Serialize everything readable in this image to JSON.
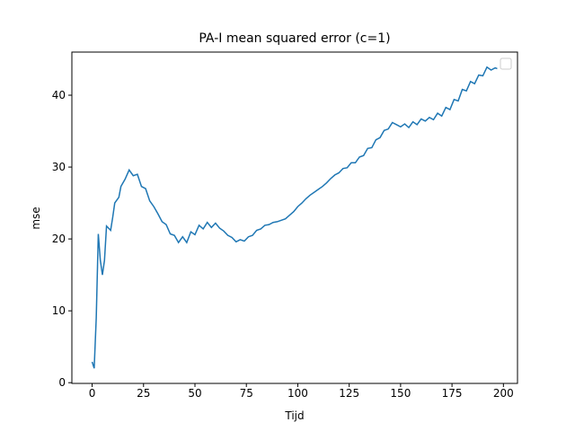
{
  "chart_data": {
    "type": "line",
    "title": "PA-I mean squared error (c=1)",
    "x_label": "Tijd",
    "y_label": "mse",
    "x": [
      0,
      1,
      2,
      3,
      4,
      5,
      6,
      7,
      8,
      9,
      10,
      11,
      13,
      14,
      16,
      18,
      20,
      22,
      24,
      26,
      28,
      30,
      32,
      34,
      36,
      38,
      40,
      42,
      44,
      46,
      48,
      50,
      52,
      54,
      56,
      58,
      60,
      62,
      64,
      66,
      68,
      70,
      72,
      74,
      76,
      78,
      80,
      82,
      84,
      86,
      88,
      90,
      92,
      94,
      96,
      98,
      100,
      102,
      104,
      106,
      108,
      110,
      112,
      114,
      116,
      118,
      120,
      122,
      124,
      126,
      128,
      130,
      132,
      134,
      136,
      138,
      140,
      142,
      144,
      146,
      148,
      150,
      152,
      154,
      156,
      158,
      160,
      162,
      164,
      166,
      168,
      170,
      172,
      174,
      176,
      178,
      180,
      182,
      184,
      186,
      188,
      190,
      192,
      194,
      196,
      197
    ],
    "series": [
      {
        "color": "#1f77b4",
        "values": [
          2.9,
          2.0,
          9,
          20.7,
          17,
          15,
          17,
          21.8,
          21.5,
          21.2,
          23,
          25,
          25.8,
          27.3,
          28.3,
          29.6,
          28.8,
          29,
          27.3,
          27,
          25.3,
          24.5,
          23.5,
          22.4,
          22,
          20.7,
          20.5,
          19.5,
          20.3,
          19.5,
          21,
          20.6,
          21.9,
          21.4,
          22.3,
          21.6,
          22.2,
          21.5,
          21.1,
          20.5,
          20.2,
          19.6,
          19.9,
          19.7,
          20.3,
          20.5,
          21.2,
          21.4,
          21.9,
          22,
          22.3,
          22.4,
          22.6,
          22.8,
          23.3,
          23.8,
          24.5,
          25,
          25.6,
          26.1,
          26.5,
          26.9,
          27.3,
          27.8,
          28.4,
          28.9,
          29.2,
          29.8,
          29.9,
          30.6,
          30.6,
          31.4,
          31.6,
          32.6,
          32.7,
          33.8,
          34.1,
          35.1,
          35.3,
          36.2,
          35.9,
          35.6,
          36.0,
          35.5,
          36.3,
          35.9,
          36.7,
          36.4,
          36.9,
          36.6,
          37.5,
          37.1,
          38.3,
          38.0,
          39.4,
          39.2,
          40.8,
          40.6,
          41.9,
          41.6,
          42.8,
          42.7,
          43.9,
          43.5,
          43.8,
          43.7
        ]
      }
    ],
    "xlim": [
      -9.85,
      206.85
    ],
    "ylim": [
      -0.1,
      46.0
    ],
    "xticks": [
      0,
      25,
      50,
      75,
      100,
      125,
      150,
      175,
      200
    ],
    "yticks": [
      0,
      10,
      20,
      30,
      40
    ]
  }
}
